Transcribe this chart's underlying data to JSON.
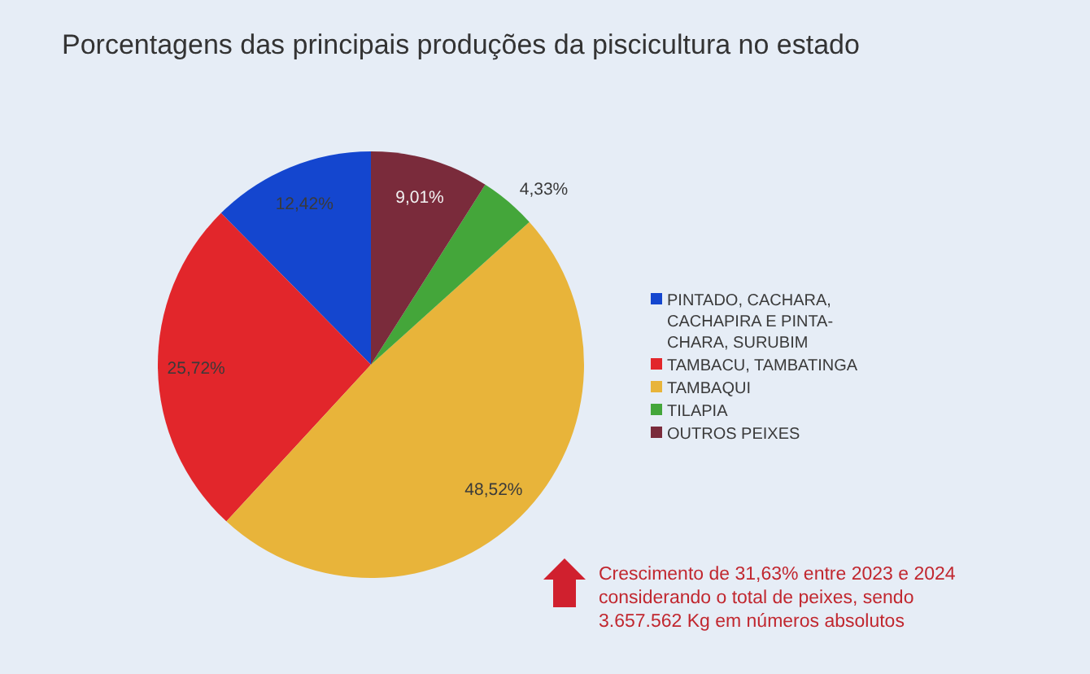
{
  "chart_data": {
    "type": "pie",
    "title": "Porcentagens das principais produções da piscicultura no estado",
    "categories": [
      "PINTADO, CACHARA, CACHAPIRA E PINTA-CHARA, SURUBIM",
      "TAMBACU, TAMBATINGA",
      "TAMBAQUI",
      "TILAPIA",
      "OUTROS PEIXES"
    ],
    "values": [
      12.42,
      25.72,
      48.52,
      4.33,
      9.01
    ],
    "colors": [
      "#1446cf",
      "#e2262b",
      "#e8b43a",
      "#44a63a",
      "#7a2b3b"
    ],
    "value_labels": [
      "12,42%",
      "25,72%",
      "48,52%",
      "4,33%",
      "9,01%"
    ],
    "legend": "right",
    "annotations": [
      "Crescimento de 31,63% entre 2023 e 2024 considerando o total de peixes, sendo 3.657.562 Kg em números absolutos"
    ]
  }
}
